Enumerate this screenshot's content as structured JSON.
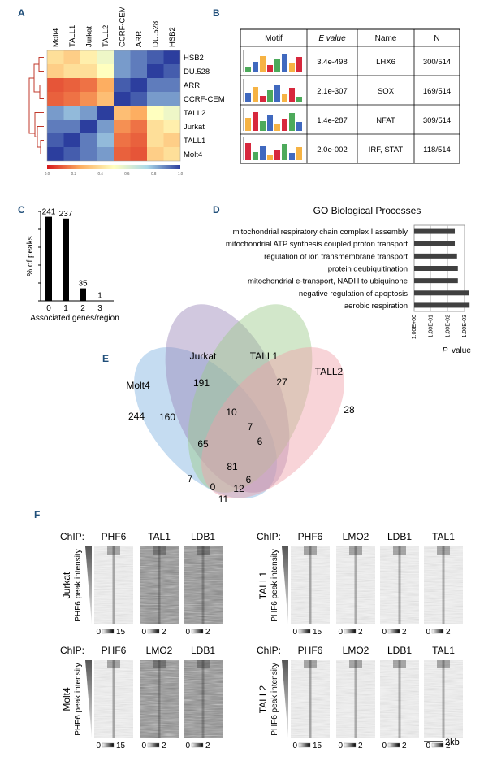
{
  "panels": {
    "A": "A",
    "B": "B",
    "C": "C",
    "D": "D",
    "E": "E",
    "F": "F"
  },
  "panel_a": {
    "col_labels": [
      "Molt4",
      "TALL1",
      "Jurkat",
      "TALL2",
      "CCRF-CEM",
      "ARR",
      "DU.528",
      "HSB2"
    ],
    "row_labels": [
      "HSB2",
      "DU.528",
      "ARR",
      "CCRF-CEM",
      "TALL2",
      "Jurkat",
      "TALL1",
      "Molt4"
    ],
    "matrix": [
      [
        0.4,
        0.35,
        0.45,
        0.55,
        0.85,
        0.9,
        0.95,
        1.0
      ],
      [
        0.35,
        0.4,
        0.4,
        0.5,
        0.85,
        0.9,
        1.0,
        0.95
      ],
      [
        0.1,
        0.12,
        0.15,
        0.25,
        0.95,
        1.0,
        0.9,
        0.9
      ],
      [
        0.12,
        0.15,
        0.2,
        0.3,
        1.0,
        0.95,
        0.85,
        0.85
      ],
      [
        0.85,
        0.8,
        0.85,
        1.0,
        0.3,
        0.25,
        0.5,
        0.55
      ],
      [
        0.9,
        0.9,
        1.0,
        0.85,
        0.2,
        0.15,
        0.4,
        0.45
      ],
      [
        0.95,
        1.0,
        0.9,
        0.8,
        0.15,
        0.12,
        0.4,
        0.35
      ],
      [
        1.0,
        0.95,
        0.9,
        0.85,
        0.12,
        0.1,
        0.35,
        0.4
      ]
    ],
    "scale_ticks": [
      "0.0",
      "0.2",
      "0.4",
      "0.6",
      "0.8",
      "1.0"
    ]
  },
  "panel_b": {
    "headers": [
      "Motif",
      "E value",
      "Name",
      "N"
    ],
    "rows": [
      {
        "evalue": "3.4e-498",
        "name": "LHX6",
        "n": "300/514"
      },
      {
        "evalue": "2.1e-307",
        "name": "SOX",
        "n": "169/514"
      },
      {
        "evalue": "1.4e-287",
        "name": "NFAT",
        "n": "309/514"
      },
      {
        "evalue": "2.0e-002",
        "name": "IRF, STAT",
        "n": "118/514"
      }
    ]
  },
  "chart_data": [
    {
      "type": "bar",
      "categories": [
        "0",
        "1",
        "2",
        "3"
      ],
      "values": [
        47,
        46,
        7,
        0.2
      ],
      "data_labels": [
        "241",
        "237",
        "35",
        "1"
      ],
      "xlabel": "Associated genes/region",
      "ylabel": "% of peaks",
      "ylim": [
        0,
        50
      ]
    },
    {
      "type": "bar",
      "orientation": "horizontal",
      "title": "GO Biological Processes",
      "categories": [
        "mitochondrial respiratory chain complex I assembly",
        "mitochondrial ATP synthesis coupled proton transport",
        "regulation of ion transmembrane transport",
        "protein deubiquitination",
        "mitochondrial e-transport, NADH to ubiquinone",
        "negative regulation of apoptosis",
        "aerobic respiration"
      ],
      "values": [
        0.0038,
        0.0038,
        0.0028,
        0.0025,
        0.0025,
        0.00055,
        0.0005
      ],
      "xlabel": "P value",
      "x_ticks": [
        "1.00E+00",
        "1.00E-01",
        "1.00E-02",
        "1.00E-03"
      ],
      "scale": "log-reversed"
    }
  ],
  "panel_e": {
    "sets": [
      "Molt4",
      "Jurkat",
      "TALL1",
      "TALL2"
    ],
    "colors": [
      "#7fb2e0",
      "#9a86b8",
      "#9cc98a",
      "#f0a0a8"
    ],
    "counts": [
      "244",
      "191",
      "27",
      "28",
      "160",
      "10",
      "7",
      "65",
      "6",
      "81",
      "6",
      "7",
      "0",
      "12",
      "11"
    ]
  },
  "panel_f": {
    "chip_label": "ChIP:",
    "axis_label": "PHF6 peak intensity",
    "scale_bar": "2kb",
    "groups": [
      {
        "cell": "Jurkat",
        "tracks": [
          "PHF6",
          "TAL1",
          "LDB1"
        ],
        "scales": [
          [
            "0",
            "15"
          ],
          [
            "0",
            "2"
          ],
          [
            "0",
            "2"
          ]
        ]
      },
      {
        "cell": "TALL1",
        "tracks": [
          "PHF6",
          "LMO2",
          "LDB1",
          "TAL1"
        ],
        "scales": [
          [
            "0",
            "15"
          ],
          [
            "0",
            "2"
          ],
          [
            "0",
            "2"
          ],
          [
            "0",
            "2"
          ]
        ]
      },
      {
        "cell": "Molt4",
        "tracks": [
          "PHF6",
          "LMO2",
          "LDB1"
        ],
        "scales": [
          [
            "0",
            "15"
          ],
          [
            "0",
            "2"
          ],
          [
            "0",
            "2"
          ]
        ]
      },
      {
        "cell": "TALL2",
        "tracks": [
          "PHF6",
          "LMO2",
          "LDB1",
          "TAL1"
        ],
        "scales": [
          [
            "0",
            "15"
          ],
          [
            "0",
            "2"
          ],
          [
            "0",
            "2"
          ],
          [
            "0",
            "2"
          ]
        ]
      }
    ]
  }
}
